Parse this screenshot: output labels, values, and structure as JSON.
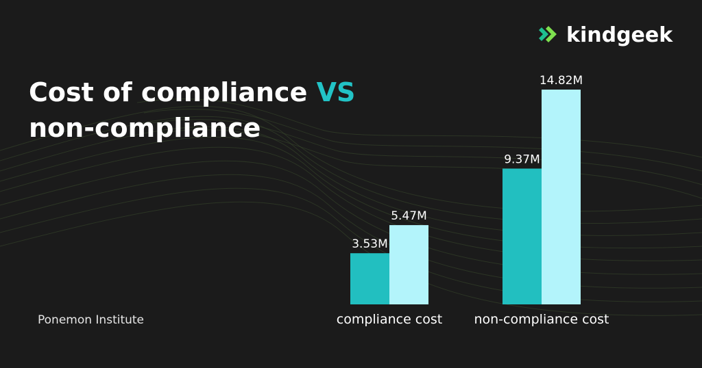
{
  "chart_data": {
    "type": "bar",
    "title": [
      "Cost of compliance",
      "VS",
      "non-compliance"
    ],
    "source": "Ponemon Institute",
    "logo": "kindgeek",
    "categories": [
      "compliance cost",
      "non-compliance cost"
    ],
    "series": [
      {
        "color": "#22bfc0",
        "values": [
          3.53,
          9.37
        ],
        "value_labels": [
          "3.53M",
          "9.37M"
        ]
      },
      {
        "color": "#b3f4fb",
        "values": [
          5.47,
          14.82
        ],
        "value_labels": [
          "5.47M",
          "14.82M"
        ]
      }
    ]
  }
}
